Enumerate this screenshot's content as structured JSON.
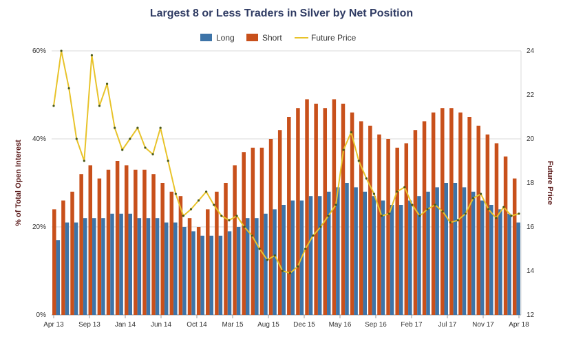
{
  "chart_data": {
    "type": "bar",
    "title": "Largest 8 or Less Traders in Silver by Net Position",
    "ylabel_left": "% of Total Open Interest",
    "ylabel_right": "Future Price",
    "left_axis": {
      "ylim": [
        0,
        60
      ],
      "ticks": [
        0,
        20,
        40,
        60
      ],
      "tick_labels": [
        "0%",
        "20%",
        "40%",
        "60%"
      ]
    },
    "right_axis": {
      "ylim": [
        12,
        24
      ],
      "ticks": [
        12,
        14,
        16,
        18,
        20,
        22,
        24
      ],
      "tick_labels": [
        "12",
        "14",
        "16",
        "18",
        "20",
        "22",
        "24"
      ]
    },
    "x_ticks": [
      "Apr 13",
      "Sep 13",
      "Jan 14",
      "Jun 14",
      "Oct 14",
      "Mar 15",
      "Aug 15",
      "Dec 15",
      "May 16",
      "Sep 16",
      "Feb 17",
      "Jul 17",
      "Nov 17",
      "Apr 18"
    ],
    "legend_position": "top",
    "grid": "horizontal",
    "colors": {
      "long": "#3d74a8",
      "short": "#c8501b",
      "price": "#e8c32a"
    },
    "series": [
      {
        "name": "Long",
        "values": [
          17,
          21,
          21,
          22,
          22,
          22,
          23,
          23,
          23,
          22,
          22,
          22,
          21,
          21,
          20,
          19,
          18,
          18,
          18,
          19,
          20,
          22,
          22,
          23,
          24,
          25,
          26,
          26,
          27,
          27,
          28,
          29,
          30,
          29,
          28,
          27,
          26,
          25,
          25,
          26,
          27,
          28,
          29,
          30,
          30,
          29,
          28,
          26,
          25,
          24,
          23,
          21
        ]
      },
      {
        "name": "Short",
        "values": [
          24,
          26,
          28,
          32,
          34,
          31,
          33,
          35,
          34,
          33,
          33,
          32,
          30,
          28,
          27,
          22,
          20,
          24,
          28,
          30,
          34,
          37,
          38,
          38,
          40,
          42,
          45,
          47,
          49,
          48,
          47,
          49,
          48,
          46,
          44,
          43,
          41,
          40,
          38,
          39,
          42,
          44,
          46,
          47,
          47,
          46,
          45,
          43,
          41,
          39,
          36,
          31
        ]
      },
      {
        "name": "Future Price",
        "values": [
          21.5,
          24.0,
          22.3,
          20.0,
          19.0,
          23.8,
          21.5,
          22.5,
          20.5,
          19.5,
          20.0,
          20.5,
          19.6,
          19.3,
          20.5,
          19.0,
          17.5,
          16.5,
          16.8,
          17.2,
          17.6,
          17.0,
          16.5,
          16.3,
          16.5,
          16.0,
          15.6,
          15.0,
          14.5,
          14.7,
          14.0,
          13.9,
          14.2,
          15.0,
          15.6,
          16.0,
          16.5,
          17.0,
          19.5,
          20.3,
          19.0,
          18.2,
          17.5,
          16.5,
          16.6,
          17.6,
          17.8,
          17.0,
          16.5,
          16.8,
          17.0,
          16.7,
          16.2,
          16.3,
          16.6,
          17.3,
          17.5,
          16.8,
          16.4,
          16.9,
          16.5,
          16.6
        ]
      }
    ]
  }
}
